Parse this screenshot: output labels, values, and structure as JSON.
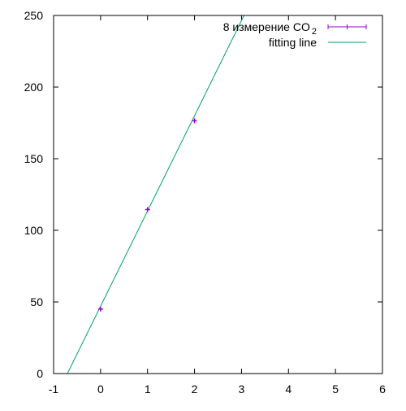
{
  "chart_data": {
    "type": "scatter",
    "title": "",
    "xlabel": "",
    "ylabel": "",
    "xlim": [
      -1,
      6
    ],
    "ylim": [
      0,
      250
    ],
    "x_ticks": [
      -1,
      0,
      1,
      2,
      3,
      4,
      5,
      6
    ],
    "y_ticks": [
      0,
      50,
      100,
      150,
      200,
      250
    ],
    "grid": false,
    "legend_position": "top-right",
    "series": [
      {
        "name": "8 измерение CO",
        "name_subscript": "2",
        "kind": "points-with-errorbars",
        "color": "#9400d3",
        "points": [
          {
            "x": 0,
            "y": 45
          },
          {
            "x": 1,
            "y": 114.5
          },
          {
            "x": 2,
            "y": 176.5
          }
        ]
      },
      {
        "name": "fitting line",
        "kind": "line",
        "color": "#009e73",
        "slope": 66.5,
        "intercept": 47.0
      }
    ]
  }
}
